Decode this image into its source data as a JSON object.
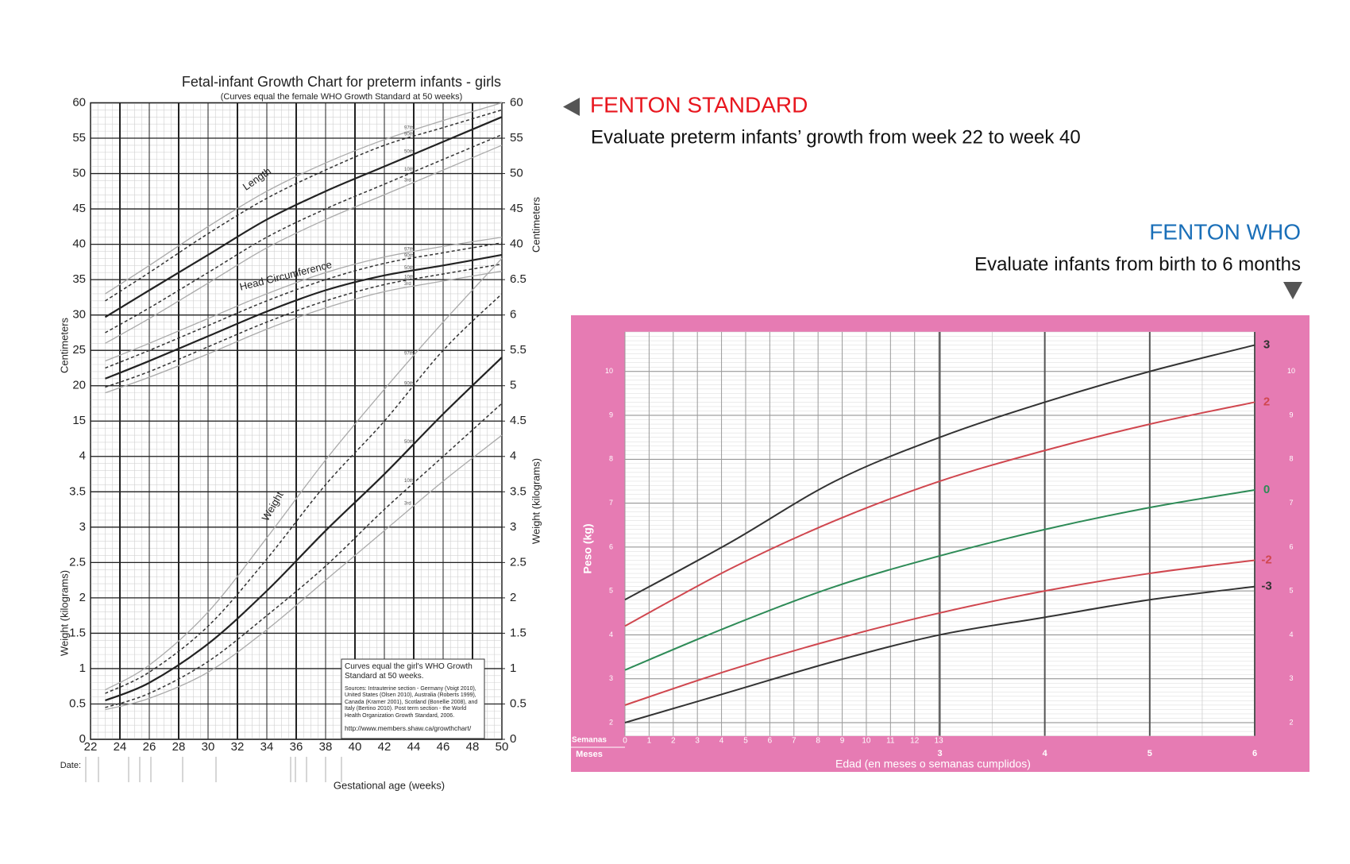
{
  "callouts": [
    {
      "title": "FENTON STANDARD",
      "text": "Evaluate preterm infants’ growth from week 22 to week 40"
    },
    {
      "title": "FENTON WHO",
      "text": "Evaluate infants from birth to 6 months"
    }
  ],
  "chart_data": [
    {
      "type": "line",
      "title": "Fetal-infant Growth Chart for preterm infants - girls",
      "subtitle": "(Curves equal the female WHO Growth Standard at 50 weeks)",
      "x_label": "Gestational age (weeks)",
      "y_label": "Weight (kilograms)",
      "y2_label": "Centimeters",
      "date_label": "Date:",
      "note": {
        "heading": "Curves equal the girl's WHO Growth Standard at 50 weeks.",
        "sources": "Sources: Intrauterine section - Germany (Voigt 2010), United States (Olsen 2010), Australia (Roberts 1999), Canada (Kramer 2001), Scotland (Bonellie 2008), and Italy (Bertino 2010). Post term section - the World Health Organization Growth Standard, 2006.",
        "url": "http://www.members.shaw.ca/growthchart/"
      },
      "xlim": [
        22,
        50
      ],
      "xticks": [
        22,
        24,
        26,
        28,
        30,
        32,
        34,
        36,
        38,
        40,
        42,
        44,
        46,
        48,
        50
      ],
      "ylim": [
        0,
        9
      ],
      "yticks": [
        0,
        0.5,
        1,
        1.5,
        2,
        2.5,
        3,
        3.5,
        4
      ],
      "y2lim": [
        -30,
        60
      ],
      "y2ticks": [
        15,
        20,
        25,
        30,
        35,
        40,
        45,
        50,
        55,
        60
      ],
      "right_yticks": [
        0,
        0.5,
        1,
        1.5,
        2,
        2.5,
        3,
        3.5,
        4,
        4.5,
        5,
        5.5,
        6,
        6.5
      ],
      "right_y2ticks": [
        40,
        45,
        50,
        55,
        60
      ],
      "grid": true,
      "x": [
        23,
        26,
        30,
        34,
        38,
        42,
        46,
        50
      ],
      "measures": [
        {
          "label": "Length",
          "axis": "y2",
          "series": [
            {
              "name": "97th",
              "color": "#aaaaaa",
              "dashed": false,
              "values": [
                33,
                37,
                42.5,
                47.5,
                51.5,
                54.8,
                57.5,
                60
              ]
            },
            {
              "name": "90th",
              "color": "#333333",
              "dashed": true,
              "values": [
                32,
                36,
                41.5,
                46.5,
                50.5,
                54,
                56.5,
                59
              ]
            },
            {
              "name": "50th",
              "color": "#222222",
              "dashed": false,
              "values": [
                29.7,
                33.5,
                38.5,
                43.5,
                47.5,
                51,
                54.5,
                58
              ]
            },
            {
              "name": "10th",
              "color": "#333333",
              "dashed": true,
              "values": [
                27.5,
                31,
                36,
                41,
                45,
                48.5,
                52,
                55.5
              ]
            },
            {
              "name": "3rd",
              "color": "#aaaaaa",
              "dashed": false,
              "values": [
                26,
                29.5,
                34.5,
                39.5,
                43.5,
                47,
                50.5,
                54
              ]
            }
          ]
        },
        {
          "label": "Head Circumference",
          "axis": "y2",
          "series": [
            {
              "name": "97th",
              "color": "#aaaaaa",
              "dashed": false,
              "values": [
                23.5,
                26,
                29.5,
                33,
                36,
                38.2,
                39.7,
                41
              ]
            },
            {
              "name": "90th",
              "color": "#333333",
              "dashed": true,
              "values": [
                22.5,
                25,
                28.5,
                32,
                35,
                37.3,
                38.8,
                40.2
              ]
            },
            {
              "name": "50th",
              "color": "#222222",
              "dashed": false,
              "values": [
                21,
                23.5,
                27,
                30.5,
                33.5,
                35.6,
                37,
                38.5
              ]
            },
            {
              "name": "10th",
              "color": "#333333",
              "dashed": true,
              "values": [
                19.8,
                22,
                25.5,
                29,
                32,
                34.3,
                35.8,
                37.2
              ]
            },
            {
              "name": "3rd",
              "color": "#aaaaaa",
              "dashed": false,
              "values": [
                19,
                21.2,
                24.5,
                28,
                31,
                33.3,
                34.8,
                36.2
              ]
            }
          ]
        },
        {
          "label": "Weight",
          "axis": "y",
          "series": [
            {
              "name": "97th",
              "color": "#aaaaaa",
              "dashed": false,
              "values": [
                0.7,
                1.05,
                1.8,
                2.85,
                3.95,
                4.95,
                5.9,
                6.8
              ]
            },
            {
              "name": "90th",
              "color": "#333333",
              "dashed": true,
              "values": [
                0.65,
                0.95,
                1.6,
                2.55,
                3.6,
                4.5,
                5.5,
                6.3
              ]
            },
            {
              "name": "50th",
              "color": "#222222",
              "dashed": false,
              "values": [
                0.55,
                0.8,
                1.35,
                2.1,
                2.95,
                3.75,
                4.6,
                5.4
              ]
            },
            {
              "name": "10th",
              "color": "#333333",
              "dashed": true,
              "values": [
                0.45,
                0.65,
                1.1,
                1.75,
                2.45,
                3.25,
                4,
                4.75
              ]
            },
            {
              "name": "3rd",
              "color": "#aaaaaa",
              "dashed": false,
              "values": [
                0.42,
                0.58,
                0.95,
                1.55,
                2.25,
                2.95,
                3.65,
                4.3
              ]
            }
          ]
        }
      ]
    },
    {
      "type": "line",
      "y_label": "Peso (kg)",
      "x_label": "Edad (en meses o semanas cumplidos)",
      "x2_label": "Semanas",
      "x_unit_label": "Meses",
      "background": "#e67bb3",
      "xlim": [
        0,
        6
      ],
      "xticks": [
        3,
        4,
        5,
        6
      ],
      "x2lim": [
        0,
        26.09
      ],
      "x2ticks": [
        0,
        1,
        2,
        3,
        4,
        5,
        6,
        7,
        8,
        9,
        10,
        11,
        12,
        13
      ],
      "ylim": [
        1.7,
        10.9
      ],
      "yticks": [
        2,
        3,
        4,
        5,
        6,
        7,
        8,
        9,
        10
      ],
      "grid": true,
      "x": [
        0,
        1,
        2,
        3,
        4,
        5,
        6
      ],
      "series": [
        {
          "name": "3",
          "color": "#333333",
          "values": [
            4.8,
            6.1,
            7.5,
            8.5,
            9.3,
            10,
            10.6
          ]
        },
        {
          "name": "2",
          "color": "#d0474f",
          "values": [
            4.2,
            5.5,
            6.6,
            7.5,
            8.2,
            8.8,
            9.3
          ]
        },
        {
          "name": "0",
          "color": "#2e8b57",
          "values": [
            3.2,
            4.2,
            5.1,
            5.8,
            6.4,
            6.9,
            7.3
          ]
        },
        {
          "name": "-2",
          "color": "#d0474f",
          "values": [
            2.4,
            3.2,
            3.9,
            4.5,
            5,
            5.4,
            5.7
          ]
        },
        {
          "name": "-3",
          "color": "#333333",
          "values": [
            2,
            2.7,
            3.4,
            4,
            4.4,
            4.8,
            5.1
          ]
        }
      ]
    }
  ]
}
